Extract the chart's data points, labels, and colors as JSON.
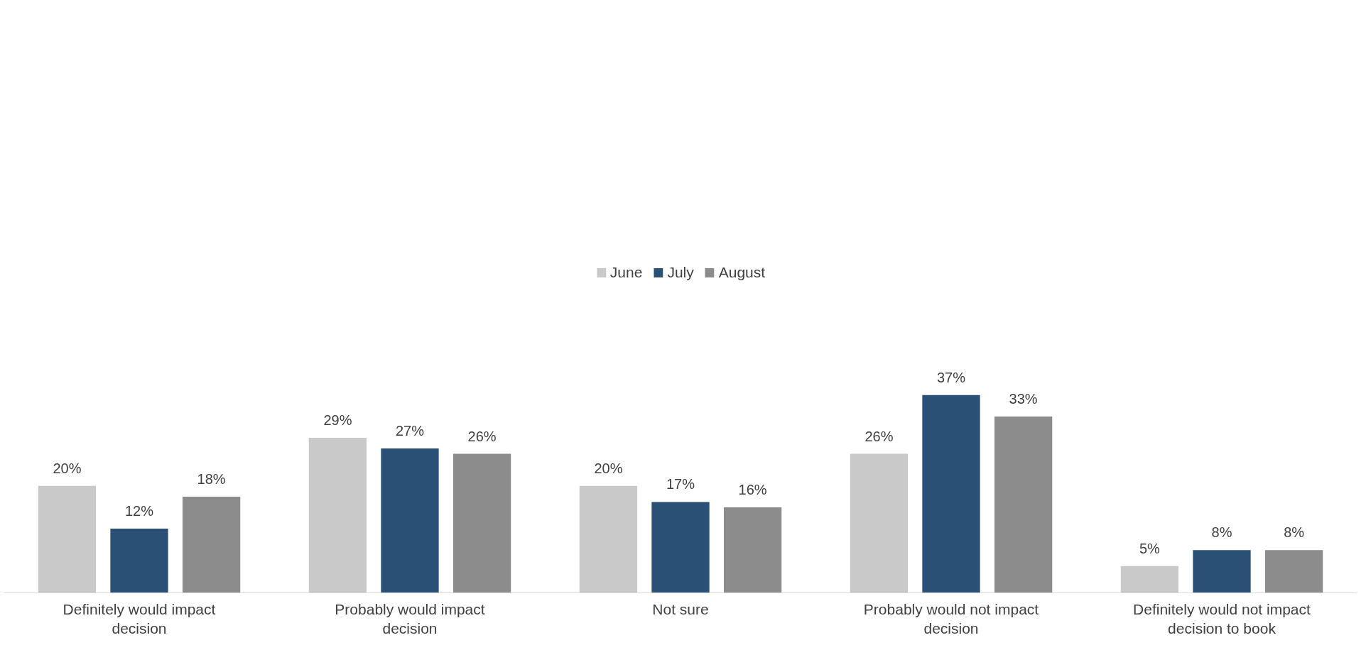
{
  "chart_data": {
    "type": "bar",
    "categories": [
      "Definitely would impact decision",
      "Probably would impact decision",
      "Not sure",
      "Probably would not impact decision",
      "Definitely would not impact decision to book"
    ],
    "series": [
      {
        "name": "June",
        "color": "#c9c9c9",
        "values": [
          20,
          29,
          20,
          26,
          5
        ],
        "value_labels": [
          "20%",
          "29%",
          "20%",
          "26%",
          "5%"
        ]
      },
      {
        "name": "July",
        "color": "#2b5075",
        "values": [
          12,
          27,
          17,
          37,
          8
        ],
        "value_labels": [
          "12%",
          "27%",
          "17%",
          "37%",
          "8%"
        ]
      },
      {
        "name": "August",
        "color": "#8c8c8c",
        "values": [
          18,
          26,
          16,
          33,
          8
        ],
        "value_labels": [
          "18%",
          "26%",
          "16%",
          "33%",
          "8%"
        ]
      }
    ],
    "legend": "top",
    "grid": false
  }
}
